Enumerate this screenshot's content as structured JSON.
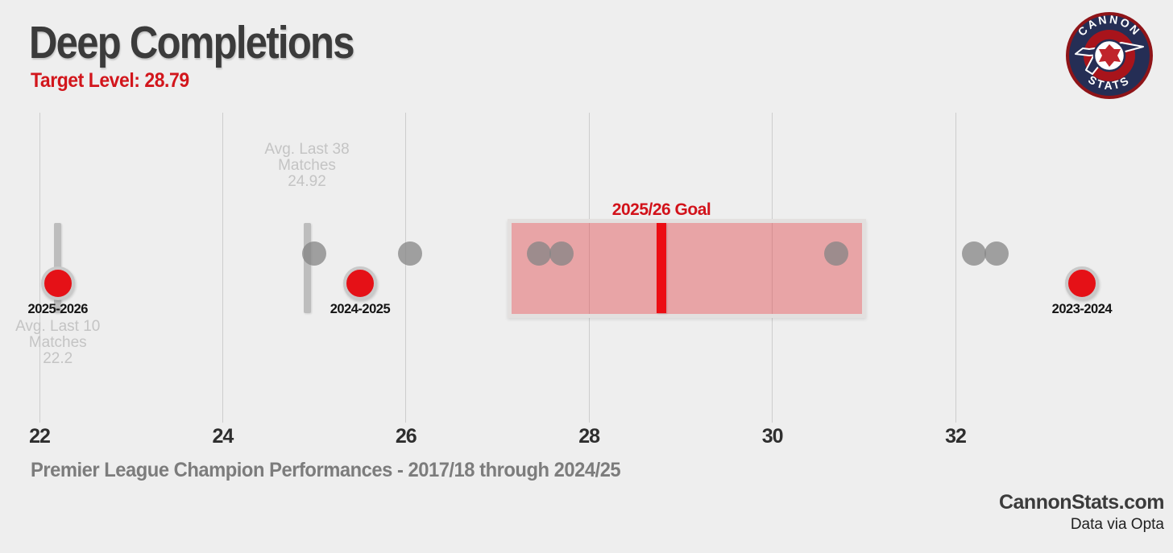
{
  "header": {
    "title": "Deep Completions",
    "subtitle": "Target Level: 28.79",
    "logo": {
      "top_text": "CANNON",
      "bottom_text": "STATS"
    }
  },
  "footer": {
    "caption": "Premier League Champion Performances - 2017/18 through 2024/25",
    "site": "CannonStats.com",
    "source": "Data via Opta"
  },
  "colors": {
    "background": "#eeeeee",
    "accent_red": "#d2161c",
    "dot_red": "#e51117",
    "goal_line_red": "#ec0d13",
    "goal_zone_pink": "rgba(224,62,66,0.42)",
    "champion_dot_gray": "rgba(132,132,132,0.75)",
    "average_bar_gray": "#bdbdbd",
    "light_label_gray": "#c4c4c4",
    "caption_gray": "#7c7c7c",
    "logo_navy": "#252e55",
    "logo_red": "#a8141b"
  },
  "chart_data": {
    "type": "scatter",
    "title": "Deep Completions",
    "xlabel": "",
    "ylabel": "",
    "xlim": [
      21.6,
      34.4
    ],
    "ticks": [
      22,
      24,
      26,
      28,
      30,
      32
    ],
    "grid": "vertical-only",
    "target_level": 28.79,
    "goal_label": "2025/26 Goal",
    "goal_zone": {
      "min": 27.15,
      "max": 30.98
    },
    "champion_dots": [
      25.0,
      26.05,
      27.45,
      27.7,
      30.7,
      32.2,
      32.45
    ],
    "season_dots": [
      {
        "label": "2025-2026",
        "value": 22.2
      },
      {
        "label": "2024-2025",
        "value": 25.5
      },
      {
        "label": "2023-2024",
        "value": 33.38
      }
    ],
    "averages": [
      {
        "value": 22.2,
        "lines": "Avg. Last 10\nMatches\n22.2",
        "label_position": "below"
      },
      {
        "value": 24.92,
        "lines": "Avg. Last 38\nMatches\n24.92",
        "label_position": "above"
      }
    ]
  }
}
